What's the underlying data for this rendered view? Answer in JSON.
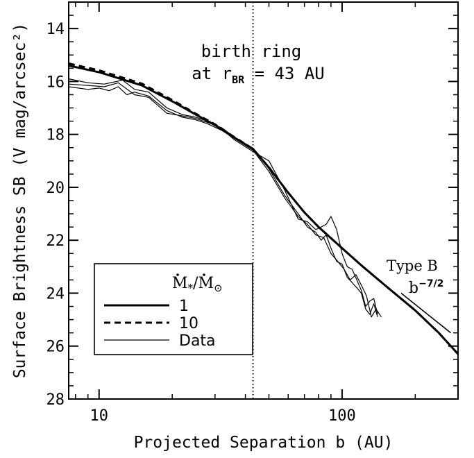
{
  "chart_data": {
    "type": "line",
    "xscale": "log",
    "xlim": [
      7.5,
      300
    ],
    "ylim": [
      28,
      13
    ],
    "xlabel": "Projected Separation b (AU)",
    "ylabel": "Surface Brightness SB (V mag/arcsec²)",
    "x_ticks": [
      {
        "value": 10,
        "label": "10"
      },
      {
        "value": 100,
        "label": "100"
      }
    ],
    "y_ticks": [
      14,
      16,
      18,
      20,
      22,
      24,
      26,
      28
    ],
    "y_tick_labels": [
      "14",
      "16",
      "18",
      "20",
      "22",
      "24",
      "26",
      "28"
    ],
    "birth_ring": {
      "x": 43,
      "label_line1": "birth ring",
      "label_line2_prefix": "at r",
      "label_line2_sub": "BR",
      "label_line2_suffix": " = 43 AU"
    },
    "type_b": {
      "label": "Type B",
      "slope_base": "b",
      "slope_exp": "−7/2",
      "x": [
        175,
        280
      ],
      "y": [
        24.0,
        25.5
      ]
    },
    "legend": {
      "title_base": "M",
      "title_sub_star": "*",
      "title_sep": "/",
      "title_sub_sun": "⊙",
      "entries": [
        "1",
        "10",
        "Data"
      ],
      "position": "bottom-left"
    },
    "series": [
      {
        "name": "1",
        "style": "thick-solid",
        "x": [
          7.5,
          10,
          15,
          20,
          25,
          30,
          35,
          43,
          50,
          60,
          70,
          80,
          100,
          120,
          150,
          200,
          250,
          300
        ],
        "y": [
          15.4,
          15.65,
          16.15,
          16.75,
          17.25,
          17.65,
          18.05,
          18.55,
          19.25,
          20.2,
          20.95,
          21.5,
          22.3,
          22.95,
          23.7,
          24.65,
          25.5,
          26.3
        ]
      },
      {
        "name": "10",
        "style": "thick-dashed",
        "x": [
          7.5,
          10,
          15,
          20,
          25,
          30,
          35,
          43,
          50,
          60,
          70,
          80,
          100,
          120,
          150,
          200,
          250,
          300
        ],
        "y": [
          15.32,
          15.58,
          16.08,
          16.7,
          17.22,
          17.62,
          18.03,
          18.55,
          19.25,
          20.2,
          20.95,
          21.5,
          22.3,
          22.95,
          23.7,
          24.65,
          25.5,
          26.3
        ]
      },
      {
        "name": "Data",
        "style": "thin",
        "x": [
          7.5,
          9,
          10.5,
          12,
          14,
          16,
          19,
          22,
          25,
          28,
          32,
          36,
          43,
          50,
          58,
          66,
          72,
          78,
          82,
          86,
          90,
          95,
          100,
          105,
          110,
          115,
          120,
          125,
          130,
          135,
          140
        ],
        "y": [
          16.1,
          16.15,
          16.2,
          16.05,
          16.5,
          16.6,
          17.2,
          17.3,
          17.4,
          17.55,
          17.75,
          18.1,
          18.55,
          19.3,
          20.3,
          21.0,
          21.5,
          21.7,
          22.0,
          21.8,
          22.3,
          22.8,
          22.9,
          23.4,
          23.6,
          23.8,
          24.0,
          24.6,
          24.8,
          24.4,
          24.9
        ]
      },
      {
        "name": "Data",
        "style": "thin",
        "x": [
          7.5,
          9,
          10.5,
          12.5,
          14,
          16,
          19,
          22,
          25,
          28,
          32,
          36,
          43,
          50,
          58,
          66,
          72,
          78,
          82,
          86,
          90,
          95,
          100,
          105,
          110,
          115,
          120,
          125,
          130,
          135,
          140
        ],
        "y": [
          15.9,
          16.05,
          16.1,
          15.95,
          16.3,
          16.4,
          17.0,
          17.25,
          17.35,
          17.5,
          17.8,
          18.2,
          18.65,
          19.0,
          20.1,
          21.2,
          21.3,
          21.6,
          21.5,
          21.4,
          21.1,
          21.6,
          22.5,
          23.0,
          23.1,
          23.5,
          23.9,
          24.5,
          24.3,
          24.2,
          24.8
        ]
      },
      {
        "name": "Data",
        "style": "thin",
        "x": [
          7.5,
          9,
          10,
          11,
          12,
          13,
          14,
          16,
          19,
          22,
          25,
          28,
          32,
          36,
          43,
          50,
          58,
          66,
          72,
          78,
          84,
          90,
          96,
          102,
          108,
          114,
          120,
          126,
          132,
          138,
          145
        ],
        "y": [
          16.2,
          16.3,
          16.25,
          16.35,
          16.2,
          16.5,
          16.4,
          16.55,
          17.1,
          17.35,
          17.45,
          17.6,
          17.85,
          18.15,
          18.6,
          19.4,
          20.4,
          21.1,
          21.4,
          21.8,
          21.9,
          22.5,
          22.8,
          23.1,
          23.5,
          23.3,
          23.7,
          24.1,
          24.9,
          24.6,
          24.9
        ]
      }
    ]
  }
}
